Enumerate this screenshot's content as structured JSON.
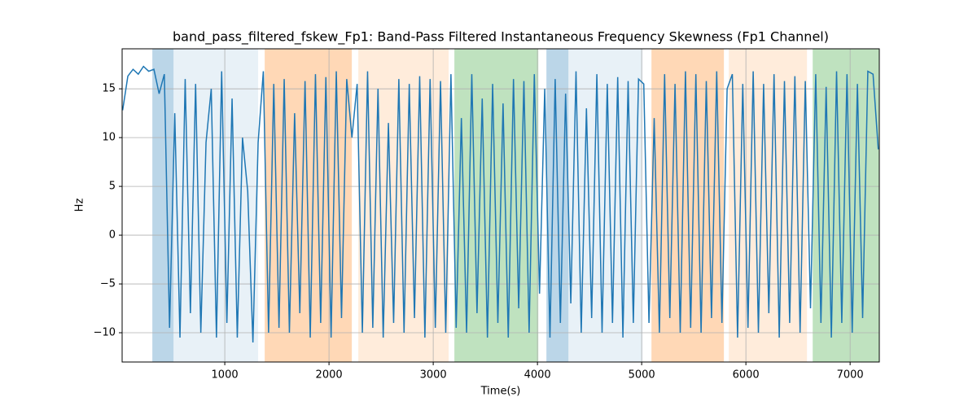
{
  "chart_data": {
    "type": "line",
    "title": "band_pass_filtered_fskew_Fp1: Band-Pass Filtered Instantaneous Frequency Skewness (Fp1 Channel)",
    "xlabel": "Time(s)",
    "ylabel": "Hz",
    "xlim": [
      15,
      7280
    ],
    "ylim": [
      -13,
      19.1
    ],
    "xticks": [
      1000,
      2000,
      3000,
      4000,
      5000,
      6000,
      7000
    ],
    "yticks": [
      {
        "value": -10,
        "label": "−10"
      },
      {
        "value": -5,
        "label": "−5"
      },
      0,
      5,
      10,
      15
    ],
    "grid": true,
    "spans": [
      {
        "start": 305,
        "end": 508,
        "color": "#1f77b4",
        "alpha": 0.3
      },
      {
        "start": 508,
        "end": 1320,
        "color": "#1f77b4",
        "alpha": 0.1
      },
      {
        "start": 1383,
        "end": 2219,
        "color": "#ff7f0e",
        "alpha": 0.3
      },
      {
        "start": 2281,
        "end": 3148,
        "color": "#ff7f0e",
        "alpha": 0.15
      },
      {
        "start": 3203,
        "end": 4008,
        "color": "#2ca02c",
        "alpha": 0.3
      },
      {
        "start": 4086,
        "end": 4297,
        "color": "#1f77b4",
        "alpha": 0.3
      },
      {
        "start": 4297,
        "end": 5008,
        "color": "#1f77b4",
        "alpha": 0.1
      },
      {
        "start": 5094,
        "end": 5789,
        "color": "#ff7f0e",
        "alpha": 0.3
      },
      {
        "start": 5836,
        "end": 6586,
        "color": "#ff7f0e",
        "alpha": 0.15
      },
      {
        "start": 6641,
        "end": 7280,
        "color": "#2ca02c",
        "alpha": 0.3
      }
    ],
    "x": [
      20,
      70,
      120,
      170,
      220,
      270,
      320,
      370,
      420,
      470,
      520,
      570,
      620,
      670,
      720,
      770,
      820,
      870,
      920,
      970,
      1020,
      1070,
      1120,
      1170,
      1220,
      1270,
      1320,
      1370,
      1420,
      1470,
      1520,
      1570,
      1620,
      1670,
      1720,
      1770,
      1820,
      1870,
      1920,
      1970,
      2020,
      2070,
      2120,
      2170,
      2220,
      2270,
      2320,
      2370,
      2420,
      2470,
      2520,
      2570,
      2620,
      2670,
      2720,
      2770,
      2820,
      2870,
      2920,
      2970,
      3020,
      3070,
      3120,
      3170,
      3220,
      3270,
      3320,
      3370,
      3420,
      3470,
      3520,
      3570,
      3620,
      3670,
      3720,
      3770,
      3820,
      3870,
      3920,
      3970,
      4020,
      4070,
      4120,
      4170,
      4220,
      4270,
      4320,
      4370,
      4420,
      4470,
      4520,
      4570,
      4620,
      4670,
      4720,
      4770,
      4820,
      4870,
      4920,
      4970,
      5020,
      5070,
      5120,
      5170,
      5220,
      5270,
      5320,
      5370,
      5420,
      5470,
      5520,
      5570,
      5620,
      5670,
      5720,
      5770,
      5820,
      5870,
      5920,
      5970,
      6020,
      6070,
      6120,
      6170,
      6220,
      6270,
      6320,
      6370,
      6420,
      6470,
      6520,
      6570,
      6620,
      6670,
      6720,
      6770,
      6820,
      6870,
      6920,
      6970,
      7020,
      7070,
      7120,
      7170,
      7220,
      7270
    ],
    "series": [
      {
        "color": "#1f77b4",
        "values": [
          12.8,
          16.3,
          17,
          16.5,
          17.3,
          16.8,
          17,
          14.5,
          16.5,
          -9.5,
          12.5,
          -10.5,
          16,
          -8,
          15.5,
          -10,
          9.5,
          15,
          -10.5,
          16.8,
          -9,
          14,
          -10.5,
          10,
          4.5,
          -11,
          9.5,
          16.8,
          -10,
          15.5,
          -9.5,
          16,
          -10,
          12.5,
          -8,
          15.8,
          -10.5,
          16.5,
          -9,
          16.2,
          -10.5,
          16.8,
          -8.5,
          16,
          10,
          15.5,
          -10,
          16.8,
          -9.5,
          15,
          -10.5,
          11.5,
          -9,
          16,
          -10,
          15.5,
          -8.5,
          16.3,
          -10.5,
          16,
          -9.5,
          15.8,
          -10,
          16.5,
          -9.5,
          12,
          -10,
          16.5,
          -8,
          14,
          -10.5,
          15.5,
          -9,
          13.5,
          -10.5,
          16,
          -7.5,
          15.8,
          -10,
          16.5,
          -6,
          15,
          -10.5,
          16,
          -9,
          14.5,
          -7,
          16.8,
          -10,
          13,
          -8.5,
          16.5,
          -10,
          15.5,
          -9,
          16.2,
          -10.5,
          15.8,
          -9,
          16,
          15.5,
          -9,
          12,
          -10,
          16.5,
          -8.5,
          15.5,
          -10,
          16.8,
          -9.5,
          16.5,
          -10,
          15.8,
          -8.5,
          16.8,
          -9,
          15,
          16.5,
          -10.5,
          15.5,
          -9.5,
          16.8,
          -10,
          15.5,
          -8,
          16.5,
          -10.5,
          15.8,
          -9,
          16.3,
          -10,
          15.8,
          -7.5,
          16.5,
          -9,
          15.2,
          -10.5,
          16.8,
          -9,
          16.5,
          -10,
          15.5,
          -8.5,
          16.8,
          16.5,
          8.8
        ]
      }
    ]
  }
}
